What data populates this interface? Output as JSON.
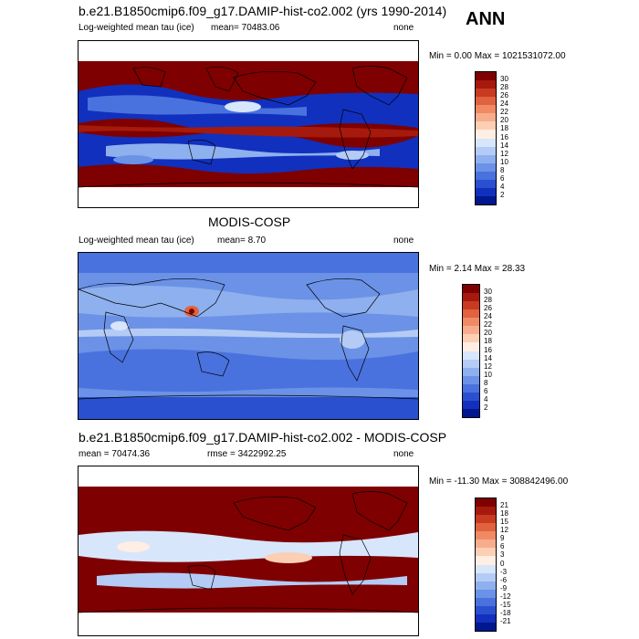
{
  "season": "ANN",
  "panels": [
    {
      "title": "b.e21.B1850cmip6.f09_g17.DAMIP-hist-co2.002 (yrs 1990-2014)",
      "left_label": "Log-weighted mean tau (ice)",
      "center_label": "mean= 70483.06",
      "right_label": "none",
      "minmax": "Min =   0.00 Max = 1021531072.00",
      "levels": [
        "30",
        "28",
        "26",
        "24",
        "22",
        "20",
        "18",
        "16",
        "14",
        "12",
        "10",
        "8",
        "6",
        "4",
        "2"
      ],
      "colors": [
        "#7f0000",
        "#a51a0d",
        "#c83b21",
        "#e0623f",
        "#f08a64",
        "#f7ad8c",
        "#fccfb4",
        "#ffeee3",
        "#d7e6fb",
        "#b4ccf5",
        "#8eb0ee",
        "#6b92e6",
        "#4a72de",
        "#2b50cf",
        "#1130bd",
        "#00178f"
      ]
    },
    {
      "title": "MODIS-COSP",
      "left_label": "Log-weighted mean tau (ice)",
      "center_label": "mean=   8.70",
      "right_label": "none",
      "minmax": "Min =   2.14 Max =  28.33",
      "levels": [
        "30",
        "28",
        "26",
        "24",
        "22",
        "20",
        "18",
        "16",
        "14",
        "12",
        "10",
        "8",
        "6",
        "4",
        "2"
      ],
      "colors": [
        "#7f0000",
        "#a51a0d",
        "#c83b21",
        "#e0623f",
        "#f08a64",
        "#f7ad8c",
        "#fccfb4",
        "#ffeee3",
        "#d7e6fb",
        "#b4ccf5",
        "#8eb0ee",
        "#6b92e6",
        "#4a72de",
        "#2b50cf",
        "#1130bd",
        "#00178f"
      ]
    },
    {
      "title": "b.e21.B1850cmip6.f09_g17.DAMIP-hist-co2.002 - MODIS-COSP",
      "left_label": "mean = 70474.36",
      "center_label": "rmse = 3422992.25",
      "right_label": "none",
      "minmax": "Min = -11.30 Max = 308842496.00",
      "levels": [
        "21",
        "18",
        "15",
        "12",
        "9",
        "6",
        "3",
        "0",
        "-3",
        "-6",
        "-9",
        "-12",
        "-15",
        "-18",
        "-21"
      ],
      "colors": [
        "#7f0000",
        "#a51a0d",
        "#c83b21",
        "#e0623f",
        "#f08a64",
        "#f7ad8c",
        "#fccfb4",
        "#ffeee3",
        "#d7e6fb",
        "#b4ccf5",
        "#8eb0ee",
        "#6b92e6",
        "#4a72de",
        "#2b50cf",
        "#1130bd",
        "#00178f"
      ]
    }
  ]
}
